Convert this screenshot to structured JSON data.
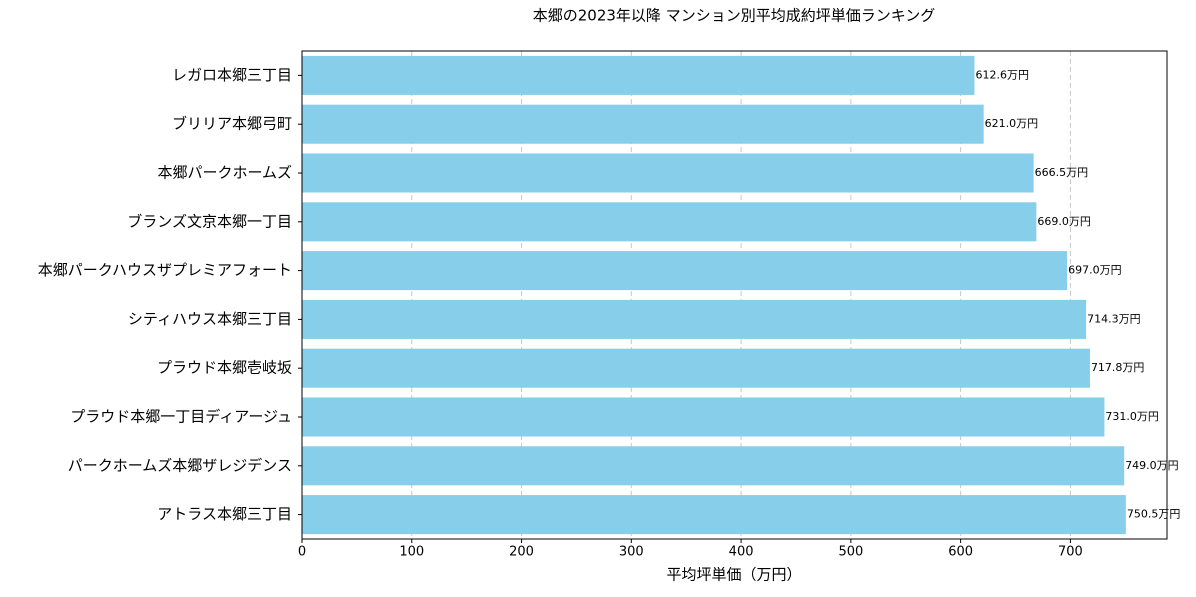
{
  "chart_data": {
    "type": "barh",
    "title": "本郷の2023年以降 マンション別平均成約坪単価ランキング",
    "x_label": "平均坪単価（万円）",
    "categories": [
      "レガロ本郷三丁目",
      "ブリリア本郷弓町",
      "本郷パークホームズ",
      "ブランズ文京本郷一丁目",
      "本郷パークハウスザプレミアフォート",
      "シティハウス本郷三丁目",
      "プラウド本郷壱岐坂",
      "プラウド本郷一丁目ディアージュ",
      "パークホームズ本郷ザレジデンス",
      "アトラス本郷三丁目"
    ],
    "values": [
      612.6,
      621.0,
      666.5,
      669.0,
      697.0,
      714.3,
      717.8,
      731.0,
      749.0,
      750.5
    ],
    "value_labels": [
      "612.6万円",
      "621.0万円",
      "666.5万円",
      "669.0万円",
      "697.0万円",
      "714.3万円",
      "717.8万円",
      "731.0万円",
      "749.0万円",
      "750.5万円"
    ],
    "color": "#87ceeb",
    "xlim": [
      0,
      788
    ],
    "xticks": [
      0,
      100,
      200,
      300,
      400,
      500,
      600,
      700
    ],
    "grid": true
  }
}
